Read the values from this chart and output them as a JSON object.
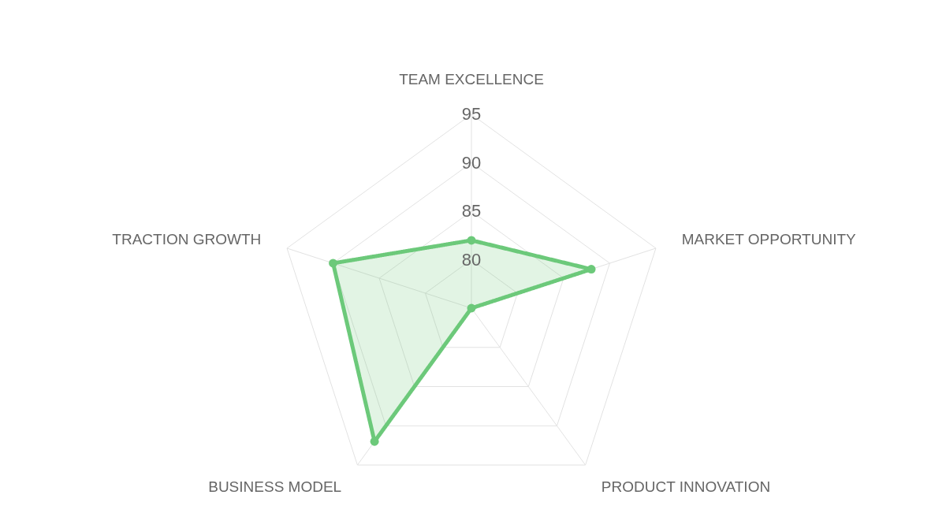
{
  "chart_data": {
    "type": "radar",
    "categories": [
      "TEAM EXCELLENCE",
      "MARKET OPPORTUNITY",
      "PRODUCT INNOVATION",
      "BUSINESS MODEL",
      "TRACTION GROWTH"
    ],
    "series": [
      {
        "color": "#6cc97a",
        "values": [
          82,
          88,
          75,
          92,
          90
        ]
      }
    ],
    "ylim": [
      75,
      95
    ],
    "yticks": [
      80,
      85,
      90,
      95
    ],
    "grid": true,
    "marker": "circle",
    "line_style": "solid"
  }
}
